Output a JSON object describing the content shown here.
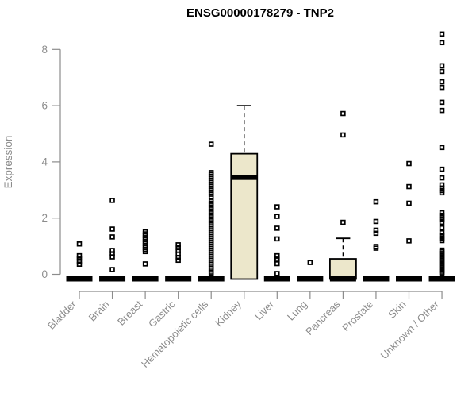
{
  "chart_data": {
    "type": "boxplot",
    "title": "ENSG00000178279 - TNP2",
    "ylabel": "Expression",
    "xlabel": "",
    "yticks": [
      0,
      2,
      4,
      6,
      8
    ],
    "ylim": [
      0,
      8.6
    ],
    "grid": false,
    "colors": {
      "box_fill": "#ECE7CB",
      "box_stroke": "#000000",
      "point_stroke": "#000000",
      "axis_color": "#8C8C8C",
      "label_color": "#8C8C8C",
      "title_color": "#000000",
      "background": "#FFFFFF"
    },
    "categories": [
      {
        "label": "Bladder",
        "median": 0,
        "box": null,
        "points": [
          1.08,
          0.66,
          0.57,
          0.47,
          0.36
        ]
      },
      {
        "label": "Brain",
        "median": 0,
        "box": null,
        "points": [
          2.63,
          1.61,
          1.33,
          0.85,
          0.73,
          0.62,
          0.17
        ]
      },
      {
        "label": "Breast",
        "median": 0,
        "box": null,
        "points": [
          1.51,
          1.44,
          1.37,
          1.3,
          1.23,
          1.16,
          1.09,
          1.02,
          0.95,
          0.88,
          0.81,
          0.37
        ]
      },
      {
        "label": "Gastric",
        "median": 0,
        "box": null,
        "points": [
          1.05,
          0.95,
          0.85,
          0.72,
          0.6,
          0.5
        ]
      },
      {
        "label": "Hematopoietic cells",
        "median": 0,
        "box": null,
        "points": [
          4.63,
          3.62,
          3.55,
          3.48,
          3.41,
          3.34,
          3.27,
          3.2,
          3.13,
          3.06,
          2.99,
          2.92,
          2.85,
          2.77,
          2.6,
          2.53,
          2.46,
          2.39,
          2.32,
          2.25,
          2.18,
          2.11,
          2.04,
          1.97,
          1.9,
          1.83,
          1.76,
          1.69,
          1.62,
          1.55,
          1.48,
          1.41,
          1.34,
          1.27,
          1.2,
          1.13,
          1.06,
          0.99,
          0.92,
          0.85,
          0.78,
          0.71,
          0.64,
          0.57,
          0.5,
          0.43,
          0.36,
          0.29,
          0.22,
          0.15,
          0.08,
          0.03
        ]
      },
      {
        "label": "Kidney",
        "median": 3.45,
        "box": {
          "q1": 0,
          "q3": 4.29,
          "whisker_high": 6.0
        },
        "points": []
      },
      {
        "label": "Liver",
        "median": 0,
        "box": null,
        "points": [
          2.4,
          2.06,
          1.64,
          1.26,
          0.66,
          0.57,
          0.51,
          0.38,
          0.03
        ]
      },
      {
        "label": "Lung",
        "median": 0,
        "box": null,
        "points": [
          0.42
        ]
      },
      {
        "label": "Pancreas",
        "median": 0,
        "box": {
          "q1": 0,
          "q3": 0.55,
          "whisker_high": 1.28
        },
        "points": [
          5.72,
          4.96,
          1.85
        ]
      },
      {
        "label": "Prostate",
        "median": 0,
        "box": null,
        "points": [
          2.58,
          1.88,
          1.57,
          1.46,
          0.99,
          0.93
        ]
      },
      {
        "label": "Skin",
        "median": 0,
        "box": null,
        "points": [
          3.94,
          3.12,
          2.53,
          1.19
        ]
      },
      {
        "label": "Unknown / Other",
        "median": 0,
        "box": null,
        "points": [
          8.55,
          8.24,
          7.42,
          7.22,
          6.85,
          6.65,
          6.12,
          5.83,
          4.51,
          3.74,
          3.43,
          3.18,
          3.07,
          2.98,
          2.9,
          2.19,
          2.1,
          2.02,
          1.94,
          1.85,
          1.65,
          1.48,
          1.37,
          1.29,
          1.2,
          0.86,
          0.8,
          0.74,
          0.68,
          0.62,
          0.56,
          0.5,
          0.44,
          0.38,
          0.32,
          0.26,
          0.2,
          0.14,
          0.08,
          0.03
        ]
      }
    ]
  }
}
